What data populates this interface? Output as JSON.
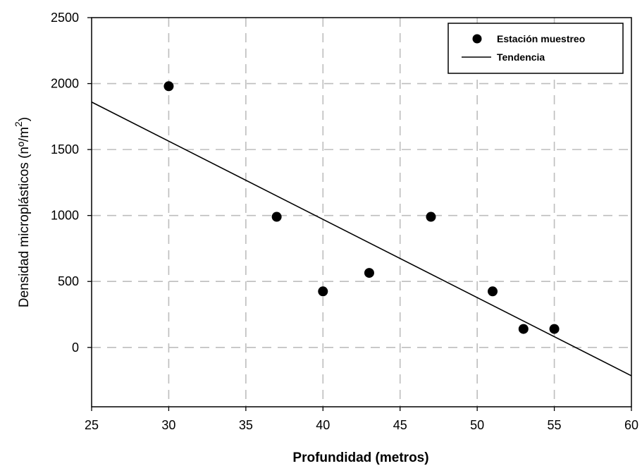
{
  "chart_data": {
    "type": "scatter",
    "xlabel": "Profundidad (metros)",
    "ylabel": "Densidad microplásticos (nº/m",
    "ylabel_sup": "2",
    "ylabel_close": ")",
    "xlim": [
      25,
      60
    ],
    "ylim": [
      -450,
      2500
    ],
    "x_ticks": [
      25,
      30,
      35,
      40,
      45,
      50,
      55,
      60
    ],
    "y_ticks": [
      0,
      500,
      1000,
      1500,
      2000,
      2500
    ],
    "grid": true,
    "legend_position": "top-right",
    "series": [
      {
        "name": "Estación muestreo",
        "kind": "points",
        "color": "#000000",
        "points": [
          {
            "x": 30,
            "y": 1980
          },
          {
            "x": 37,
            "y": 990
          },
          {
            "x": 40,
            "y": 425
          },
          {
            "x": 43,
            "y": 565
          },
          {
            "x": 47,
            "y": 990
          },
          {
            "x": 51,
            "y": 425
          },
          {
            "x": 53,
            "y": 140
          },
          {
            "x": 55,
            "y": 140
          }
        ]
      },
      {
        "name": "Tendencia",
        "kind": "line",
        "color": "#000000",
        "points": [
          {
            "x": 25,
            "y": 1860
          },
          {
            "x": 60,
            "y": -215
          }
        ]
      }
    ]
  }
}
